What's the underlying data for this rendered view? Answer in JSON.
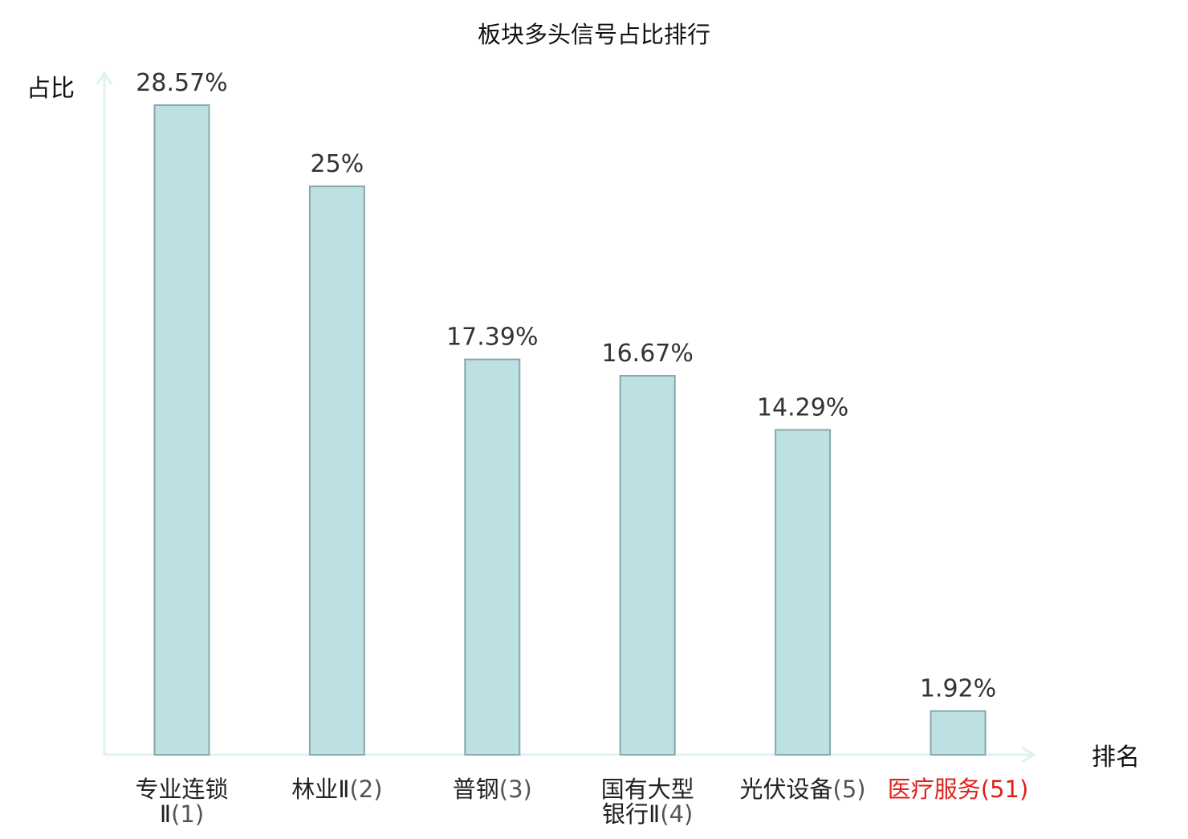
{
  "chart_data": {
    "type": "bar",
    "title": "板块多头信号占比排行",
    "ylabel": "占比",
    "xlabel": "排名",
    "ylim": [
      0,
      30
    ],
    "grid": false,
    "categories": [
      {
        "name_lines": [
          "专业连锁",
          "Ⅱ"
        ],
        "rank": "(1)",
        "highlight": false
      },
      {
        "name_lines": [
          "林业Ⅱ"
        ],
        "rank": "(2)",
        "highlight": false
      },
      {
        "name_lines": [
          "普钢"
        ],
        "rank": "(3)",
        "highlight": false
      },
      {
        "name_lines": [
          "国有大型",
          "银行Ⅱ"
        ],
        "rank": "(4)",
        "highlight": false
      },
      {
        "name_lines": [
          "光伏设备"
        ],
        "rank": "(5)",
        "highlight": false
      },
      {
        "name_lines": [
          "医疗服务"
        ],
        "rank": "(51)",
        "highlight": true
      }
    ],
    "values": [
      28.57,
      25,
      17.39,
      16.67,
      14.29,
      1.92
    ],
    "value_labels": [
      "28.57%",
      "25%",
      "17.39%",
      "16.67%",
      "14.29%",
      "1.92%"
    ],
    "colors": {
      "bar_fill": "#bde0e3",
      "bar_stroke": "#86a7ab",
      "axis": "#e0f2f0",
      "text": "#333333",
      "label": "#222222",
      "highlight": "#e0201c"
    }
  }
}
